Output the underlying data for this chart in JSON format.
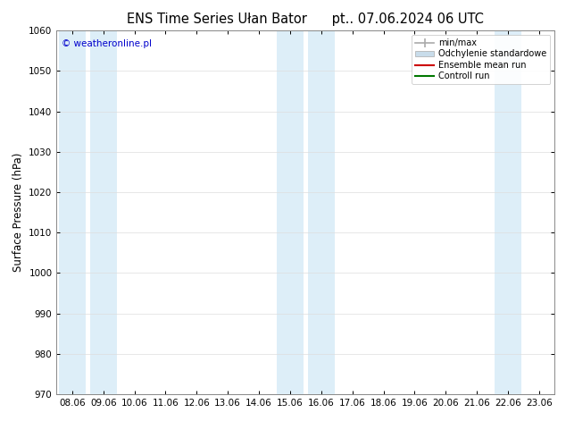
{
  "title_left": "ENS Time Series Ułan Bator",
  "title_right": "pt.. 07.06.2024 06 UTC",
  "ylabel": "Surface Pressure (hPa)",
  "ylim": [
    970,
    1060
  ],
  "yticks": [
    970,
    980,
    990,
    1000,
    1010,
    1020,
    1030,
    1040,
    1050,
    1060
  ],
  "xtick_labels": [
    "08.06",
    "09.06",
    "10.06",
    "11.06",
    "12.06",
    "13.06",
    "14.06",
    "15.06",
    "16.06",
    "17.06",
    "18.06",
    "19.06",
    "20.06",
    "21.06",
    "22.06",
    "23.06"
  ],
  "copyright_text": "© weatheronline.pl",
  "blue_band_color": "#ddeef8",
  "blue_bands_x": [
    0,
    1,
    7,
    8,
    14
  ],
  "legend_labels": [
    "min/max",
    "Odchylenie standardowe",
    "Ensemble mean run",
    "Controll run"
  ],
  "legend_colors": [
    "#a0a0a0",
    "#c8dcea",
    "#cc0000",
    "#007700"
  ],
  "bg_color": "#ffffff",
  "title_fontsize": 10.5,
  "tick_fontsize": 7.5,
  "ylabel_fontsize": 8.5,
  "copyright_color": "#0000cc"
}
